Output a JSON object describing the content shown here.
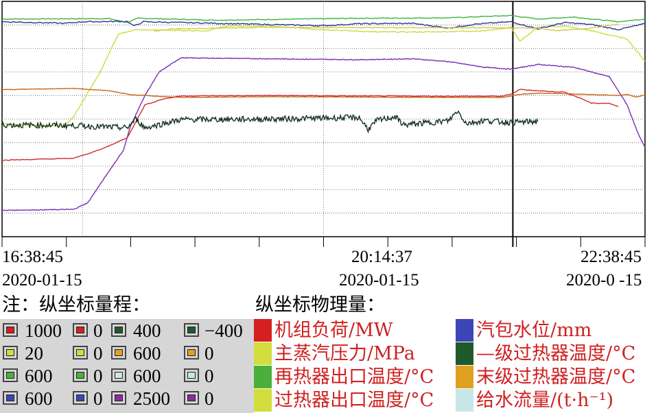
{
  "chart_data": {
    "type": "line",
    "title": "",
    "time_labels": [
      {
        "time": "16:38:45",
        "date": "2020-01-15"
      },
      {
        "time": "20:14:37",
        "date": "2020-01-15"
      },
      {
        "time": "22:38:45",
        "date": "2020-0 -15"
      }
    ],
    "x_range_minutes": [
      0,
      360
    ],
    "cursor_minutes": 286,
    "scale_header": "注：纵坐标量程：",
    "legend_header": "纵坐标物理量：",
    "scale_rows": [
      [
        {
          "max": "1000",
          "min": "0",
          "color": "#d42020"
        },
        {
          "max": "400",
          "min": "−400",
          "color": "#1f5a2c"
        }
      ],
      [
        {
          "max": "20",
          "min": "0",
          "color": "#d2dc3c"
        },
        {
          "max": "600",
          "min": "0",
          "color": "#e0a020"
        }
      ],
      [
        {
          "max": "600",
          "min": "0",
          "color": "#4caf3c"
        },
        {
          "max": "600",
          "min": "0",
          "color": "#c8e6e6"
        }
      ],
      [
        {
          "max": "600",
          "min": "0",
          "color": "#3c46b4"
        },
        {
          "max": "2500",
          "min": "0",
          "color": "#8c2ca0"
        }
      ]
    ],
    "legend": [
      {
        "label": "机组负荷/MW",
        "color": "#d42020"
      },
      {
        "label": "主蒸汽压力/MPa",
        "color": "#d2dc3c"
      },
      {
        "label": "再热器出口温度/°C",
        "color": "#4caf3c"
      },
      {
        "label": "过热器出口温度/°C",
        "color": "#d2dc3c"
      },
      {
        "label": "汽包水位/mm",
        "color": "#3c46b4"
      },
      {
        "label": "—级过热器温度/°C",
        "color": "#1f5a2c"
      },
      {
        "label": "末级过热器温度/°C",
        "color": "#e0a020"
      },
      {
        "label": "给水流量/(t·h⁻¹)",
        "color": "#c8e6e6"
      }
    ],
    "series": [
      {
        "color": "#3cb43c",
        "range": [
          0,
          600
        ],
        "noise": 1,
        "points": [
          [
            0,
            555
          ],
          [
            60,
            556
          ],
          [
            70,
            546
          ],
          [
            76,
            557
          ],
          [
            120,
            552
          ],
          [
            200,
            557
          ],
          [
            250,
            558
          ],
          [
            285,
            564
          ],
          [
            300,
            555
          ],
          [
            320,
            560
          ],
          [
            345,
            548
          ],
          [
            360,
            555
          ]
        ]
      },
      {
        "color": "#c8dc3c",
        "range": [
          0,
          20
        ],
        "noise": 0.04,
        "points": [
          [
            0,
            9.6
          ],
          [
            35,
            9.4
          ],
          [
            40,
            10.2
          ],
          [
            55,
            14.0
          ],
          [
            65,
            17.2
          ],
          [
            75,
            17.6
          ],
          [
            115,
            17.5
          ],
          [
            125,
            17.9
          ],
          [
            150,
            17.9
          ],
          [
            180,
            17.6
          ],
          [
            210,
            17.4
          ],
          [
            240,
            17.4
          ],
          [
            270,
            17.5
          ],
          [
            285,
            17.8
          ],
          [
            290,
            16.6
          ],
          [
            300,
            17.8
          ],
          [
            315,
            17.9
          ],
          [
            330,
            17.5
          ],
          [
            350,
            16.8
          ],
          [
            360,
            14.9
          ]
        ]
      },
      {
        "color": "#2d3296",
        "range": [
          0,
          600
        ],
        "noise": 1.5,
        "points": [
          [
            0,
            548
          ],
          [
            20,
            546
          ],
          [
            35,
            544
          ],
          [
            45,
            548
          ],
          [
            70,
            549
          ],
          [
            74,
            537
          ],
          [
            79,
            548
          ],
          [
            100,
            546
          ],
          [
            150,
            541
          ],
          [
            180,
            538
          ],
          [
            200,
            543
          ],
          [
            230,
            544
          ],
          [
            250,
            532
          ],
          [
            265,
            542
          ],
          [
            285,
            548
          ],
          [
            300,
            530
          ],
          [
            315,
            546
          ],
          [
            330,
            541
          ],
          [
            345,
            528
          ],
          [
            360,
            543
          ]
        ]
      },
      {
        "color": "#d2c84a",
        "range": [
          0,
          600
        ],
        "noise": 1,
        "points": [
          [
            85,
            524
          ],
          [
            95,
            530
          ],
          [
            150,
            534
          ],
          [
            220,
            533
          ],
          [
            270,
            533
          ],
          [
            290,
            532
          ],
          [
            300,
            532
          ],
          [
            310,
            525
          ],
          [
            330,
            532
          ],
          [
            345,
            542
          ]
        ]
      },
      {
        "color": "#7b2cb4",
        "range": [
          0,
          2500
        ],
        "noise": 4,
        "points": [
          [
            0,
            280
          ],
          [
            40,
            290
          ],
          [
            48,
            360
          ],
          [
            60,
            700
          ],
          [
            68,
            920
          ],
          [
            72,
            1180
          ],
          [
            80,
            1500
          ],
          [
            88,
            1750
          ],
          [
            100,
            1900
          ],
          [
            150,
            1890
          ],
          [
            200,
            1880
          ],
          [
            230,
            1890
          ],
          [
            250,
            1860
          ],
          [
            270,
            1800
          ],
          [
            285,
            1780
          ],
          [
            300,
            1830
          ],
          [
            320,
            1800
          ],
          [
            340,
            1700
          ],
          [
            350,
            1400
          ],
          [
            356,
            1100
          ],
          [
            360,
            950
          ]
        ]
      },
      {
        "color": "#c86414",
        "range": [
          0,
          600
        ],
        "noise": 0.5,
        "points": [
          [
            0,
            375
          ],
          [
            40,
            378
          ],
          [
            60,
            372
          ],
          [
            72,
            362
          ],
          [
            100,
            355
          ],
          [
            150,
            357
          ],
          [
            200,
            356
          ],
          [
            250,
            355
          ],
          [
            280,
            355
          ],
          [
            290,
            363
          ],
          [
            300,
            366
          ],
          [
            320,
            364
          ],
          [
            345,
            360
          ],
          [
            350,
            363
          ],
          [
            355,
            356
          ],
          [
            360,
            362
          ]
        ]
      },
      {
        "color": "#d42828",
        "range": [
          0,
          1000
        ],
        "noise": 1.5,
        "points": [
          [
            0,
            325
          ],
          [
            40,
            333
          ],
          [
            55,
            370
          ],
          [
            70,
            420
          ],
          [
            80,
            560
          ],
          [
            90,
            585
          ],
          [
            100,
            598
          ],
          [
            150,
            600
          ],
          [
            200,
            598
          ],
          [
            250,
            597
          ],
          [
            280,
            597
          ],
          [
            285,
            605
          ],
          [
            290,
            626
          ],
          [
            300,
            620
          ],
          [
            315,
            614
          ],
          [
            325,
            585
          ],
          [
            330,
            567
          ],
          [
            340,
            567
          ],
          [
            345,
            552
          ]
        ]
      },
      {
        "color": "#14321e",
        "range": [
          -400,
          400
        ],
        "noise": 10,
        "points": [
          [
            0,
            -20
          ],
          [
            40,
            -22
          ],
          [
            70,
            -30
          ],
          [
            75,
            0
          ],
          [
            80,
            -30
          ],
          [
            100,
            -2
          ],
          [
            150,
            0
          ],
          [
            200,
            5
          ],
          [
            205,
            -35
          ],
          [
            210,
            -5
          ],
          [
            220,
            8
          ],
          [
            225,
            -20
          ],
          [
            250,
            -6
          ],
          [
            255,
            28
          ],
          [
            260,
            -15
          ],
          [
            270,
            -5
          ],
          [
            285,
            -12
          ],
          [
            300,
            -8
          ]
        ]
      }
    ]
  }
}
